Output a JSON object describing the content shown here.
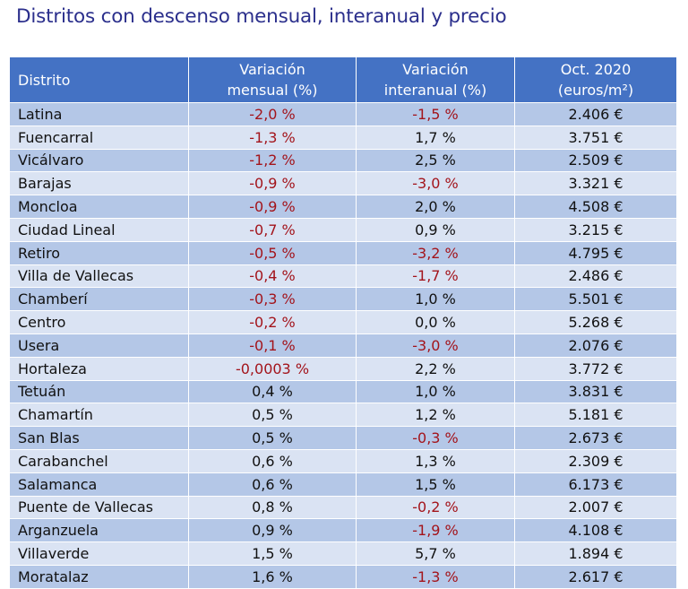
{
  "title": "Distritos con descenso mensual, interanual y precio",
  "headers": {
    "distrito": "Distrito",
    "mensual_1": "Variación",
    "mensual_2": "mensual (%)",
    "interanual_1": "Variación",
    "interanual_2": "interanual (%)",
    "precio_1": "Oct. 2020",
    "precio_2": "(euros/m²)"
  },
  "colors": {
    "header_bg": "#4472c4",
    "row_dark": "#b4c7e7",
    "row_light": "#dae3f3",
    "negative_text": "#a3141b",
    "title": "#2b2f8c"
  },
  "rows": [
    {
      "distrito": "Latina",
      "mensual": "-2,0 %",
      "interanual": "-1,5 %",
      "precio": "2.406 €"
    },
    {
      "distrito": "Fuencarral",
      "mensual": "-1,3 %",
      "interanual": "1,7 %",
      "precio": "3.751 €"
    },
    {
      "distrito": "Vicálvaro",
      "mensual": "-1,2 %",
      "interanual": "2,5 %",
      "precio": "2.509 €"
    },
    {
      "distrito": "Barajas",
      "mensual": "-0,9 %",
      "interanual": "-3,0 %",
      "precio": "3.321 €"
    },
    {
      "distrito": "Moncloa",
      "mensual": "-0,9 %",
      "interanual": "2,0 %",
      "precio": "4.508 €"
    },
    {
      "distrito": "Ciudad Lineal",
      "mensual": "-0,7 %",
      "interanual": "0,9 %",
      "precio": "3.215 €"
    },
    {
      "distrito": "Retiro",
      "mensual": "-0,5 %",
      "interanual": "-3,2 %",
      "precio": "4.795 €"
    },
    {
      "distrito": "Villa de Vallecas",
      "mensual": "-0,4 %",
      "interanual": "-1,7 %",
      "precio": "2.486 €"
    },
    {
      "distrito": "Chamberí",
      "mensual": "-0,3 %",
      "interanual": "1,0 %",
      "precio": "5.501 €"
    },
    {
      "distrito": "Centro",
      "mensual": "-0,2 %",
      "interanual": "0,0 %",
      "precio": "5.268 €"
    },
    {
      "distrito": "Usera",
      "mensual": "-0,1 %",
      "interanual": "-3,0 %",
      "precio": "2.076 €"
    },
    {
      "distrito": "Hortaleza",
      "mensual": "-0,0003 %",
      "interanual": "2,2 %",
      "precio": "3.772 €"
    },
    {
      "distrito": "Tetuán",
      "mensual": "0,4 %",
      "interanual": "1,0 %",
      "precio": "3.831 €"
    },
    {
      "distrito": "Chamartín",
      "mensual": "0,5 %",
      "interanual": "1,2 %",
      "precio": "5.181 €"
    },
    {
      "distrito": "San Blas",
      "mensual": "0,5 %",
      "interanual": "-0,3 %",
      "precio": "2.673 €"
    },
    {
      "distrito": "Carabanchel",
      "mensual": "0,6 %",
      "interanual": "1,3 %",
      "precio": "2.309 €"
    },
    {
      "distrito": "Salamanca",
      "mensual": "0,6 %",
      "interanual": "1,5 %",
      "precio": "6.173 €"
    },
    {
      "distrito": "Puente de Vallecas",
      "mensual": "0,8 %",
      "interanual": "-0,2 %",
      "precio": "2.007 €"
    },
    {
      "distrito": "Arganzuela",
      "mensual": "0,9 %",
      "interanual": "-1,9 %",
      "precio": "4.108 €"
    },
    {
      "distrito": "Villaverde",
      "mensual": "1,5 %",
      "interanual": "5,7 %",
      "precio": "1.894 €"
    },
    {
      "distrito": "Moratalaz",
      "mensual": "1,6 %",
      "interanual": "-1,3 %",
      "precio": "2.617 €"
    }
  ]
}
